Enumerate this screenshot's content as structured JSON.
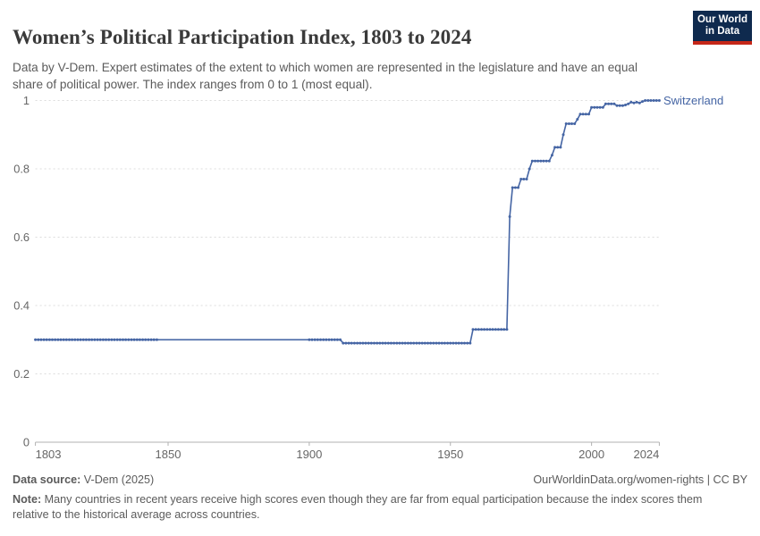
{
  "header": {
    "title": "Women’s Political Participation Index, 1803 to 2024",
    "subtitle": "Data by V-Dem. Expert estimates of the extent to which women are represented in the legislature and have an equal share of political power. The index ranges from 0 to 1 (most equal).",
    "logo": {
      "line1": "Our World",
      "line2": "in Data"
    }
  },
  "footer": {
    "source_label": "Data source:",
    "source_value": " V-Dem (2025)",
    "rights": "OurWorldinData.org/women-rights | CC BY",
    "note_label": "Note:",
    "note_value": " Many countries in recent years receive high scores even though they are far from equal participation because the index scores them relative to the historical average across countries."
  },
  "colors": {
    "line": "#4565a4",
    "grid": "#dcdcdc",
    "axis": "#b0b0b0",
    "tick_label": "#666666",
    "logo_bg": "#0f2a4e",
    "logo_accent": "#c52718"
  },
  "chart_data": {
    "type": "line",
    "title": "Women’s Political Participation Index, 1803 to 2024",
    "xlabel": "",
    "ylabel": "",
    "x_range": [
      1803,
      2024
    ],
    "ylim": [
      0,
      1
    ],
    "x_ticks": [
      1803,
      1850,
      1900,
      1950,
      2000,
      2024
    ],
    "y_ticks": [
      0,
      0.2,
      0.4,
      0.6,
      0.8,
      1
    ],
    "grid": "horizontal-dashed",
    "legend_position": "end-of-line-label",
    "series": [
      {
        "name": "Switzerland",
        "color": "#4565a4",
        "marker_gap_years": [
          1847,
          1899
        ],
        "segments": [
          {
            "from": 1803,
            "to": 1911,
            "value": 0.3
          },
          {
            "from": 1912,
            "to": 1957,
            "value": 0.29
          },
          {
            "from": 1958,
            "to": 1970,
            "value": 0.33
          },
          {
            "from": 1971,
            "to": 1971,
            "value": 0.66
          },
          {
            "from": 1972,
            "to": 1974,
            "value": 0.745
          },
          {
            "from": 1975,
            "to": 1977,
            "value": 0.77
          },
          {
            "from": 1978,
            "to": 1978,
            "value": 0.8
          },
          {
            "from": 1979,
            "to": 1985,
            "value": 0.823
          },
          {
            "from": 1986,
            "to": 1986,
            "value": 0.84
          },
          {
            "from": 1987,
            "to": 1989,
            "value": 0.863
          },
          {
            "from": 1990,
            "to": 1990,
            "value": 0.9
          },
          {
            "from": 1991,
            "to": 1994,
            "value": 0.932
          },
          {
            "from": 1995,
            "to": 1995,
            "value": 0.945
          },
          {
            "from": 1996,
            "to": 1999,
            "value": 0.96
          },
          {
            "from": 2000,
            "to": 2004,
            "value": 0.98
          },
          {
            "from": 2005,
            "to": 2008,
            "value": 0.99
          },
          {
            "from": 2009,
            "to": 2011,
            "value": 0.985
          },
          {
            "from": 2012,
            "to": 2012,
            "value": 0.987
          },
          {
            "from": 2013,
            "to": 2013,
            "value": 0.99
          },
          {
            "from": 2014,
            "to": 2014,
            "value": 0.995
          },
          {
            "from": 2015,
            "to": 2015,
            "value": 0.993
          },
          {
            "from": 2016,
            "to": 2016,
            "value": 0.995
          },
          {
            "from": 2017,
            "to": 2017,
            "value": 0.993
          },
          {
            "from": 2018,
            "to": 2018,
            "value": 0.997
          },
          {
            "from": 2019,
            "to": 2024,
            "value": 1.0
          }
        ]
      }
    ]
  }
}
